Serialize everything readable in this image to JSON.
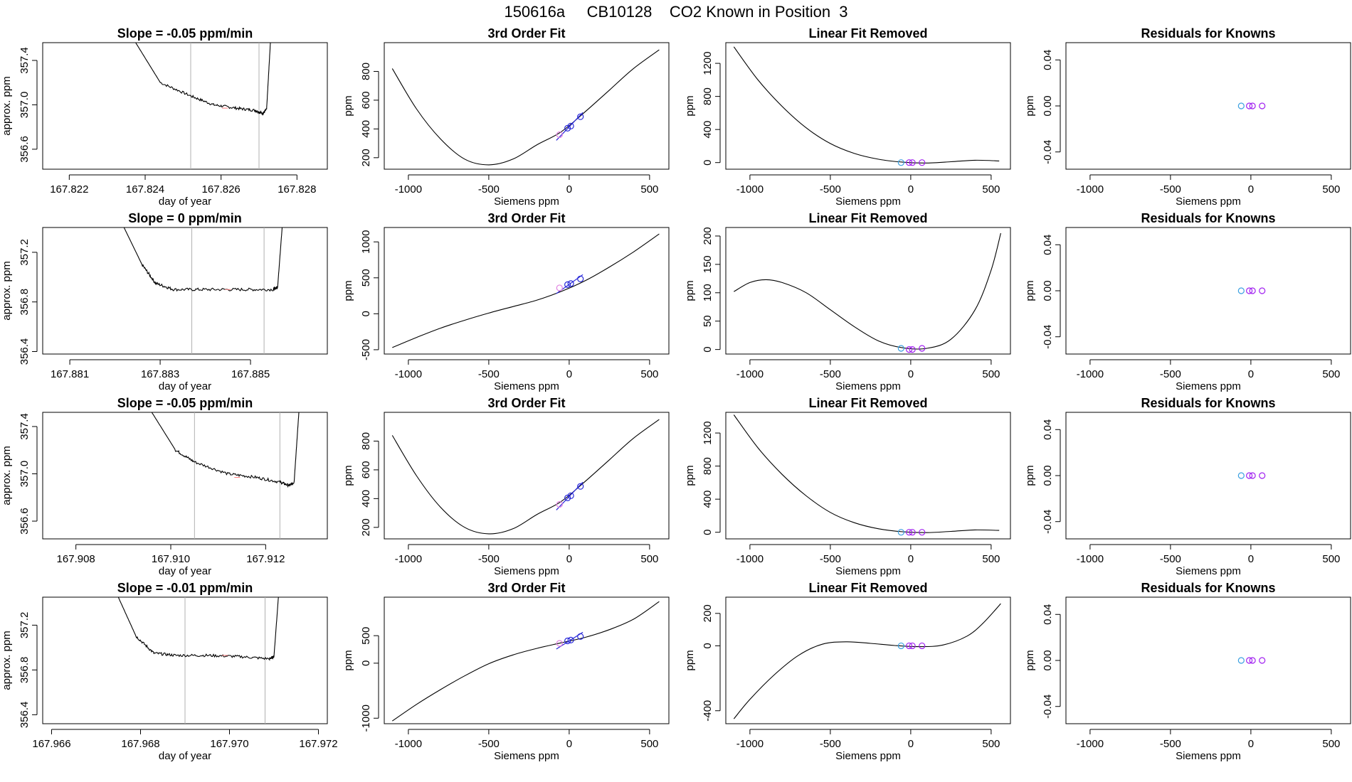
{
  "figure_title": "150616a     CB10128    CO2 Known in Position  3",
  "colors": {
    "blue": "#2828d8",
    "purple": "#a020f0",
    "cyan": "#3aa0e0",
    "magenta": "#e080e0",
    "line": "#000000",
    "vline": "#b0b0b0",
    "pink": "#ff8080"
  },
  "chart_data": [
    {
      "type": "line",
      "title": "Slope =  -0.05  ppm/min",
      "xlabel": "day of year",
      "ylabel": "approx. ppm",
      "xlim": [
        167.8213,
        167.8288
      ],
      "ylim": [
        356.42,
        357.56
      ],
      "xticks": [
        167.822,
        167.824,
        167.826,
        167.828
      ],
      "xtick_labels": [
        "167.822",
        "167.824",
        "167.826",
        "167.828"
      ],
      "yticks": [
        356.6,
        357.0,
        357.4
      ],
      "ytick_labels": [
        "356.6",
        "357.0",
        "357.4"
      ],
      "vlines": [
        167.8252,
        167.827
      ],
      "x": [
        167.82375,
        167.8244,
        167.8252,
        167.8258,
        167.8264,
        167.8269,
        167.8271,
        167.8272,
        167.8273
      ],
      "y": [
        357.56,
        357.2,
        357.08,
        357.0,
        356.97,
        356.95,
        356.92,
        356.96,
        357.56
      ],
      "noise": 0.012
    },
    {
      "type": "line",
      "title": "3rd Order Fit",
      "xlabel": "Siemens ppm",
      "ylabel": "ppm",
      "xlim": [
        -1150,
        620
      ],
      "ylim": [
        120,
        1000
      ],
      "xticks": [
        -1000,
        -500,
        0,
        500
      ],
      "xtick_labels": [
        "-1000",
        "-500",
        "0",
        "500"
      ],
      "yticks": [
        200,
        400,
        600,
        800
      ],
      "ytick_labels": [
        "200",
        "400",
        "600",
        "800"
      ],
      "curve_x": [
        -1100,
        -950,
        -800,
        -650,
        -500,
        -350,
        -200,
        -50,
        100,
        250,
        400,
        560
      ],
      "curve_y": [
        820,
        540,
        330,
        190,
        150,
        190,
        290,
        380,
        520,
        670,
        820,
        950
      ],
      "points_x": [
        -60,
        -10,
        10,
        70
      ],
      "points_y": [
        360,
        405,
        420,
        485
      ]
    },
    {
      "type": "line",
      "title": "Linear Fit Removed",
      "xlabel": "Siemens ppm",
      "ylabel": "ppm",
      "xlim": [
        -1150,
        620
      ],
      "ylim": [
        -80,
        1450
      ],
      "xticks": [
        -1000,
        -500,
        0,
        500
      ],
      "xtick_labels": [
        "-1000",
        "-500",
        "0",
        "500"
      ],
      "yticks": [
        0,
        400,
        800,
        1200
      ],
      "ytick_labels": [
        "0",
        "400",
        "800",
        "1200"
      ],
      "curve_x": [
        -1100,
        -950,
        -800,
        -650,
        -500,
        -350,
        -200,
        -50,
        100,
        250,
        400,
        550
      ],
      "curve_y": [
        1400,
        1000,
        680,
        420,
        230,
        110,
        40,
        5,
        -5,
        10,
        28,
        20
      ],
      "points_x": [
        -60,
        -10,
        10,
        70
      ],
      "points_y": [
        0,
        0,
        0,
        0
      ]
    },
    {
      "type": "scatter",
      "title": "Residuals for Knowns",
      "xlabel": "Siemens ppm",
      "ylabel": "ppm",
      "xlim": [
        -1150,
        620
      ],
      "ylim": [
        -0.055,
        0.055
      ],
      "xticks": [
        -1000,
        -500,
        0,
        500
      ],
      "xtick_labels": [
        "-1000",
        "-500",
        "0",
        "500"
      ],
      "yticks": [
        -0.04,
        0.0,
        0.04
      ],
      "ytick_labels": [
        "-0.04",
        "0.00",
        "0.04"
      ],
      "points_x": [
        -60,
        -10,
        10,
        70
      ],
      "points_y": [
        0,
        0,
        0,
        0
      ]
    },
    {
      "type": "line",
      "title": "Slope =  0  ppm/min",
      "xlabel": "day of year",
      "ylabel": "approx. ppm",
      "xlim": [
        167.8804,
        167.8867
      ],
      "ylim": [
        356.38,
        357.4
      ],
      "xticks": [
        167.881,
        167.883,
        167.885
      ],
      "xtick_labels": [
        "167.881",
        "167.883",
        "167.885"
      ],
      "vlines": [
        167.8837,
        167.8853
      ],
      "x": [
        167.8822,
        167.8826,
        167.8829,
        167.8833,
        167.884,
        167.8848,
        167.8855,
        167.8856,
        167.8857
      ],
      "yticks": [
        356.4,
        356.8,
        357.2
      ],
      "ytick_labels": [
        "356.4",
        "356.8",
        "357.2"
      ],
      "y": [
        357.4,
        357.1,
        356.95,
        356.9,
        356.9,
        356.9,
        356.9,
        356.92,
        357.4
      ],
      "noise": 0.012
    },
    {
      "type": "line",
      "title": "3rd Order Fit",
      "xlabel": "Siemens ppm",
      "ylabel": "ppm",
      "xlim": [
        -1150,
        620
      ],
      "ylim": [
        -560,
        1200
      ],
      "xticks": [
        -1000,
        -500,
        0,
        500
      ],
      "xtick_labels": [
        "-1000",
        "-500",
        "0",
        "500"
      ],
      "yticks": [
        -500,
        0,
        500,
        1000
      ],
      "ytick_labels": [
        "-500",
        "0",
        "500",
        "1000"
      ],
      "curve_x": [
        -1100,
        -950,
        -800,
        -650,
        -500,
        -350,
        -200,
        -50,
        100,
        250,
        400,
        560
      ],
      "curve_y": [
        -470,
        -330,
        -200,
        -90,
        10,
        100,
        190,
        310,
        460,
        650,
        860,
        1110
      ],
      "points_x": [
        -60,
        -10,
        10,
        70
      ],
      "points_y": [
        360,
        405,
        420,
        485
      ]
    },
    {
      "type": "line",
      "title": "Linear Fit Removed",
      "xlabel": "Siemens ppm",
      "ylabel": "ppm",
      "xlim": [
        -1150,
        620
      ],
      "ylim": [
        -8,
        215
      ],
      "xticks": [
        -1000,
        -500,
        0,
        500
      ],
      "xtick_labels": [
        "-1000",
        "-500",
        "0",
        "500"
      ],
      "yticks": [
        0,
        50,
        100,
        150,
        200
      ],
      "ytick_labels": [
        "0",
        "50",
        "100",
        "150",
        "200"
      ],
      "curve_x": [
        -1100,
        -1000,
        -900,
        -800,
        -650,
        -500,
        -350,
        -200,
        -50,
        100,
        250,
        400,
        500,
        560
      ],
      "curve_y": [
        102,
        118,
        123,
        118,
        100,
        70,
        40,
        15,
        3,
        2,
        18,
        70,
        140,
        205
      ],
      "points_x": [
        -60,
        -10,
        10,
        70
      ],
      "points_y": [
        2,
        0,
        0,
        2
      ]
    },
    {
      "type": "scatter",
      "title": "Residuals for Knowns",
      "xlabel": "Siemens ppm",
      "ylabel": "ppm",
      "xlim": [
        -1150,
        620
      ],
      "ylim": [
        -0.055,
        0.055
      ],
      "xticks": [
        -1000,
        -500,
        0,
        500
      ],
      "xtick_labels": [
        "-1000",
        "-500",
        "0",
        "500"
      ],
      "yticks": [
        -0.04,
        0.0,
        0.04
      ],
      "ytick_labels": [
        "-0.04",
        "0.00",
        "0.04"
      ],
      "points_x": [
        -60,
        -10,
        10,
        70
      ],
      "points_y": [
        0,
        0,
        0,
        0
      ]
    },
    {
      "type": "line",
      "title": "Slope =  -0.05  ppm/min",
      "xlabel": "day of year",
      "ylabel": "approx. ppm",
      "xlim": [
        167.9073,
        167.9133
      ],
      "ylim": [
        356.45,
        357.52
      ],
      "xticks": [
        167.908,
        167.91,
        167.912
      ],
      "xtick_labels": [
        "167.908",
        "167.910",
        "167.912"
      ],
      "yticks": [
        356.6,
        357.0,
        357.4
      ],
      "ytick_labels": [
        "356.6",
        "357.0",
        "357.4"
      ],
      "vlines": [
        167.9105,
        167.9123
      ],
      "x": [
        167.9096,
        167.9101,
        167.9105,
        167.9112,
        167.9118,
        167.9123,
        167.9125,
        167.9126,
        167.9127
      ],
      "y": [
        357.52,
        357.2,
        357.1,
        357.0,
        356.97,
        356.93,
        356.9,
        356.93,
        357.52
      ],
      "noise": 0.012
    },
    {
      "type": "line",
      "title": "3rd Order Fit",
      "xlabel": "Siemens ppm",
      "ylabel": "ppm",
      "xlim": [
        -1150,
        620
      ],
      "ylim": [
        120,
        1000
      ],
      "xticks": [
        -1000,
        -500,
        0,
        500
      ],
      "xtick_labels": [
        "-1000",
        "-500",
        "0",
        "500"
      ],
      "yticks": [
        200,
        400,
        600,
        800
      ],
      "ytick_labels": [
        "200",
        "400",
        "600",
        "800"
      ],
      "curve_x": [
        -1100,
        -950,
        -800,
        -650,
        -500,
        -350,
        -200,
        -50,
        100,
        250,
        400,
        560
      ],
      "curve_y": [
        840,
        560,
        340,
        200,
        155,
        190,
        290,
        380,
        520,
        670,
        820,
        950
      ],
      "points_x": [
        -60,
        -10,
        10,
        70
      ],
      "points_y": [
        360,
        405,
        420,
        485
      ]
    },
    {
      "type": "line",
      "title": "Linear Fit Removed",
      "xlabel": "Siemens ppm",
      "ylabel": "ppm",
      "xlim": [
        -1150,
        620
      ],
      "ylim": [
        -80,
        1450
      ],
      "xticks": [
        -1000,
        -500,
        0,
        500
      ],
      "xtick_labels": [
        "-1000",
        "-500",
        "0",
        "500"
      ],
      "yticks": [
        0,
        400,
        800,
        1200
      ],
      "ytick_labels": [
        "0",
        "400",
        "800",
        "1200"
      ],
      "curve_x": [
        -1100,
        -950,
        -800,
        -650,
        -500,
        -350,
        -200,
        -50,
        100,
        250,
        400,
        550
      ],
      "curve_y": [
        1420,
        1020,
        700,
        440,
        240,
        115,
        42,
        6,
        -4,
        10,
        28,
        22
      ],
      "points_x": [
        -60,
        -10,
        10,
        70
      ],
      "points_y": [
        0,
        0,
        0,
        0
      ]
    },
    {
      "type": "scatter",
      "title": "Residuals for Knowns",
      "xlabel": "Siemens ppm",
      "ylabel": "ppm",
      "xlim": [
        -1150,
        620
      ],
      "ylim": [
        -0.055,
        0.055
      ],
      "xticks": [
        -1000,
        -500,
        0,
        500
      ],
      "xtick_labels": [
        "-1000",
        "-500",
        "0",
        "500"
      ],
      "yticks": [
        -0.04,
        0.0,
        0.04
      ],
      "ytick_labels": [
        "-0.04",
        "0.00",
        "0.04"
      ],
      "points_x": [
        -60,
        -10,
        10,
        70
      ],
      "points_y": [
        0,
        0,
        0,
        0
      ]
    },
    {
      "type": "line",
      "title": "Slope =  -0.01  ppm/min",
      "xlabel": "day of year",
      "ylabel": "approx. ppm",
      "xlim": [
        167.9658,
        167.9722
      ],
      "ylim": [
        356.32,
        357.45
      ],
      "xticks": [
        167.966,
        167.968,
        167.97,
        167.972
      ],
      "xtick_labels": [
        "167.966",
        "167.968",
        "167.970",
        "167.972"
      ],
      "yticks": [
        356.4,
        356.8,
        357.2
      ],
      "ytick_labels": [
        "356.4",
        "356.8",
        "357.2"
      ],
      "vlines": [
        167.969,
        167.9708
      ],
      "x": [
        167.9675,
        167.9679,
        167.9683,
        167.9688,
        167.9695,
        167.9702,
        167.9709,
        167.971,
        167.9711
      ],
      "y": [
        357.45,
        357.1,
        356.95,
        356.93,
        356.93,
        356.92,
        356.9,
        356.92,
        357.45
      ],
      "noise": 0.012
    },
    {
      "type": "line",
      "title": "3rd Order Fit",
      "xlabel": "Siemens ppm",
      "ylabel": "ppm",
      "xlim": [
        -1150,
        620
      ],
      "ylim": [
        -1100,
        1200
      ],
      "xticks": [
        -1000,
        -500,
        0,
        500
      ],
      "xtick_labels": [
        "-1000",
        "-500",
        "0",
        "500"
      ],
      "yticks": [
        -1000,
        0,
        500
      ],
      "ytick_labels": [
        "-1000",
        "0",
        "500"
      ],
      "curve_x": [
        -1100,
        -950,
        -800,
        -650,
        -500,
        -350,
        -200,
        -50,
        100,
        250,
        400,
        560
      ],
      "curve_y": [
        -1050,
        -750,
        -480,
        -230,
        -10,
        150,
        270,
        370,
        470,
        610,
        800,
        1120
      ],
      "points_x": [
        -60,
        -10,
        10,
        70
      ],
      "points_y": [
        360,
        405,
        420,
        485
      ]
    },
    {
      "type": "line",
      "title": "Linear Fit Removed",
      "xlabel": "Siemens ppm",
      "ylabel": "ppm",
      "xlim": [
        -1150,
        620
      ],
      "ylim": [
        -480,
        300
      ],
      "xticks": [
        -1000,
        -500,
        0,
        500
      ],
      "xtick_labels": [
        "-1000",
        "-500",
        "0",
        "500"
      ],
      "yticks": [
        -400,
        0,
        200
      ],
      "ytick_labels": [
        "-400",
        "0",
        "200"
      ],
      "curve_x": [
        -1100,
        -1000,
        -850,
        -700,
        -550,
        -400,
        -250,
        -100,
        50,
        200,
        350,
        450,
        560
      ],
      "curve_y": [
        -450,
        -330,
        -180,
        -60,
        10,
        25,
        15,
        2,
        -5,
        5,
        60,
        140,
        260
      ],
      "points_x": [
        -60,
        -10,
        10,
        70
      ],
      "points_y": [
        0,
        0,
        0,
        0
      ]
    },
    {
      "type": "scatter",
      "title": "Residuals for Knowns",
      "xlabel": "Siemens ppm",
      "ylabel": "ppm",
      "xlim": [
        -1150,
        620
      ],
      "ylim": [
        -0.055,
        0.055
      ],
      "xticks": [
        -1000,
        -500,
        0,
        500
      ],
      "xtick_labels": [
        "-1000",
        "-500",
        "0",
        "500"
      ],
      "yticks": [
        -0.04,
        0.0,
        0.04
      ],
      "ytick_labels": [
        "-0.04",
        "0.00",
        "0.04"
      ],
      "points_x": [
        -60,
        -10,
        10,
        70
      ],
      "points_y": [
        0,
        0,
        0,
        0
      ]
    }
  ]
}
